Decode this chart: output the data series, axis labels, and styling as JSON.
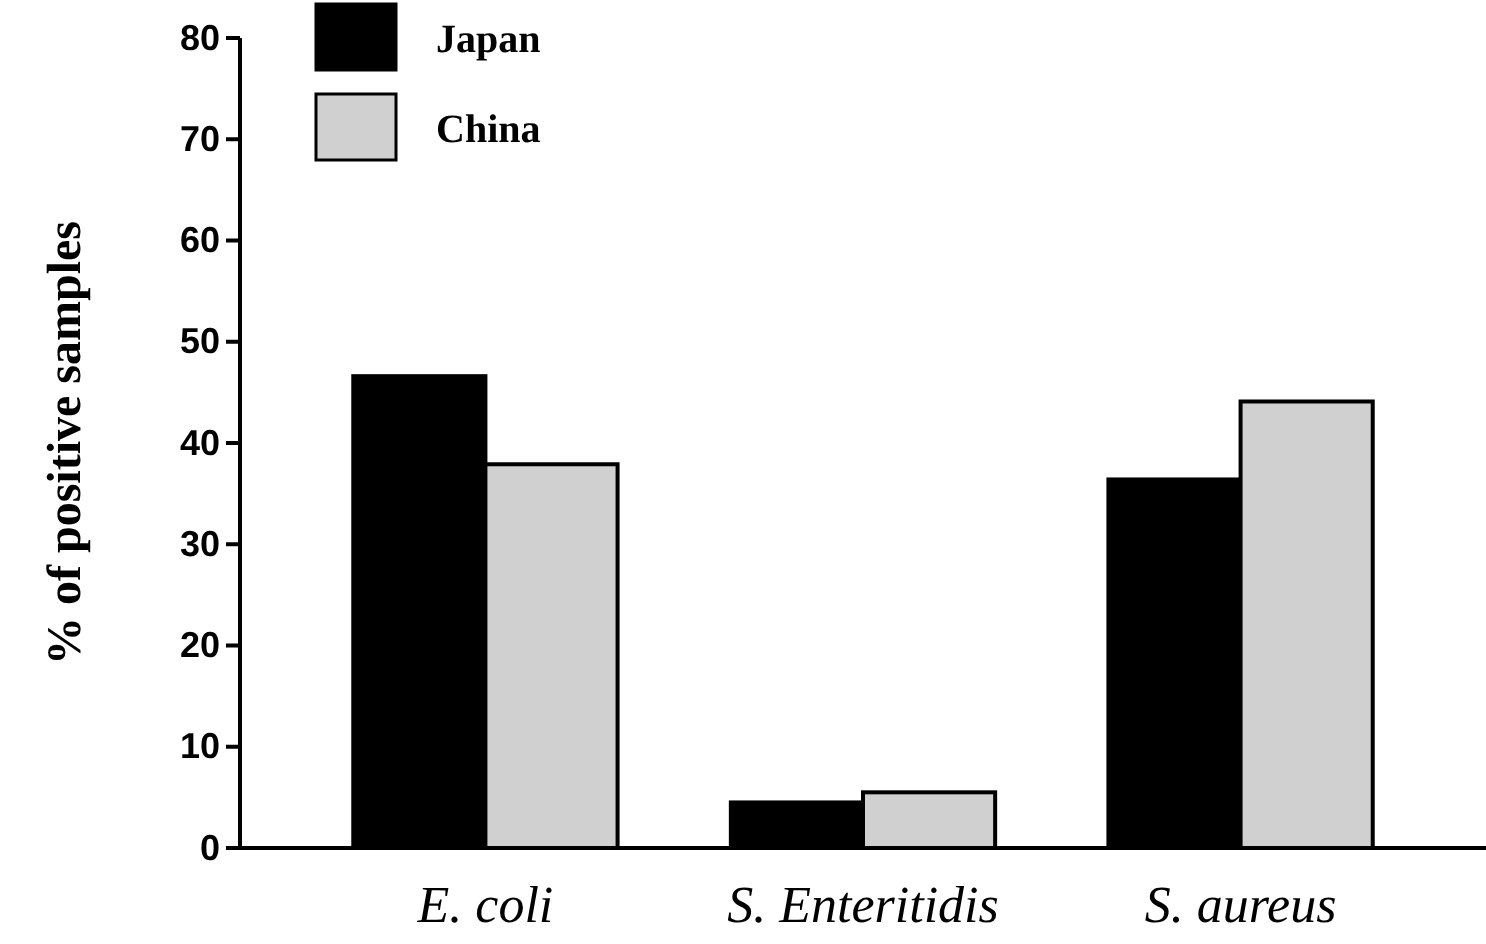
{
  "chart_data": {
    "type": "bar",
    "ylabel": "% of positive samples",
    "categories": [
      "E. coli",
      "S. Enteritidis",
      "S. aureus"
    ],
    "series": [
      {
        "name": "Japan",
        "color": "#000000",
        "values": [
          46.6,
          4.5,
          36.4
        ]
      },
      {
        "name": "China",
        "color": "#d0d0d0",
        "values": [
          37.9,
          5.5,
          44.1
        ]
      }
    ],
    "ylim": [
      0,
      80
    ],
    "yticks": [
      0,
      10,
      20,
      30,
      40,
      50,
      60,
      70,
      80
    ],
    "legend": "top left"
  }
}
